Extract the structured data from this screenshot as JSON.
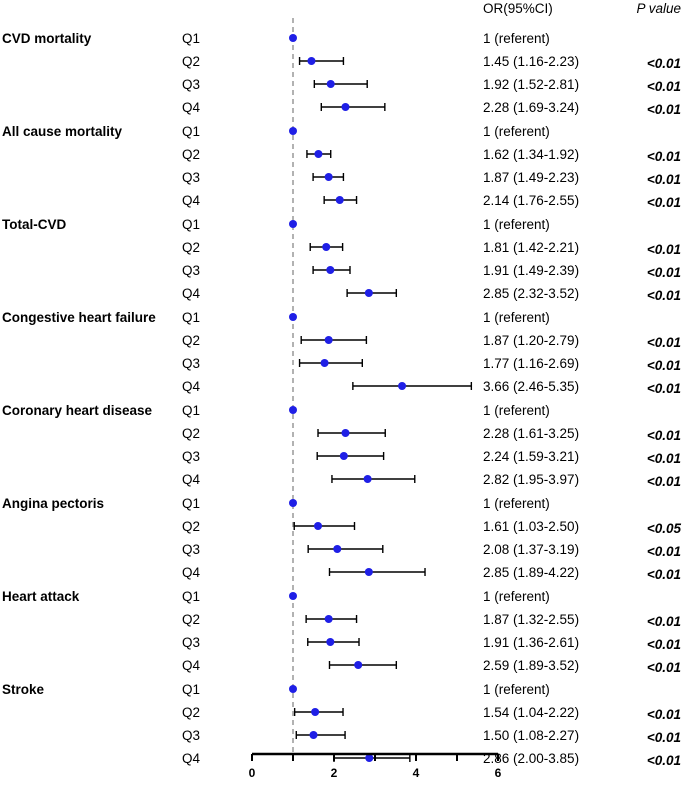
{
  "chart_data": {
    "type": "forest",
    "headers": {
      "or": "OR(95%CI)",
      "p": "P value"
    },
    "reference_value": 1,
    "xlim": [
      0,
      6
    ],
    "xticks": [
      0,
      2,
      4,
      6
    ],
    "colors": {
      "point": "#1f1fe6",
      "ci": "#000000",
      "ref": "#888888",
      "axis": "#000000"
    },
    "groups": [
      {
        "name": "CVD mortality",
        "rows": [
          {
            "q": "Q1",
            "or": 1,
            "lo": null,
            "hi": null,
            "label": "1 (referent)",
            "p": ""
          },
          {
            "q": "Q2",
            "or": 1.45,
            "lo": 1.16,
            "hi": 2.23,
            "label": "1.45 (1.16-2.23)",
            "p": "<0.01"
          },
          {
            "q": "Q3",
            "or": 1.92,
            "lo": 1.52,
            "hi": 2.81,
            "label": "1.92 (1.52-2.81)",
            "p": "<0.01"
          },
          {
            "q": "Q4",
            "or": 2.28,
            "lo": 1.69,
            "hi": 3.24,
            "label": "2.28 (1.69-3.24)",
            "p": "<0.01"
          }
        ]
      },
      {
        "name": "All cause mortality",
        "rows": [
          {
            "q": "Q1",
            "or": 1,
            "lo": null,
            "hi": null,
            "label": "1 (referent)",
            "p": ""
          },
          {
            "q": "Q2",
            "or": 1.62,
            "lo": 1.34,
            "hi": 1.92,
            "label": "1.62 (1.34-1.92)",
            "p": "<0.01"
          },
          {
            "q": "Q3",
            "or": 1.87,
            "lo": 1.49,
            "hi": 2.23,
            "label": "1.87 (1.49-2.23)",
            "p": "<0.01"
          },
          {
            "q": "Q4",
            "or": 2.14,
            "lo": 1.76,
            "hi": 2.55,
            "label": "2.14 (1.76-2.55)",
            "p": "<0.01"
          }
        ]
      },
      {
        "name": "Total-CVD",
        "rows": [
          {
            "q": "Q1",
            "or": 1,
            "lo": null,
            "hi": null,
            "label": "1 (referent)",
            "p": ""
          },
          {
            "q": "Q2",
            "or": 1.81,
            "lo": 1.42,
            "hi": 2.21,
            "label": "1.81 (1.42-2.21)",
            "p": "<0.01"
          },
          {
            "q": "Q3",
            "or": 1.91,
            "lo": 1.49,
            "hi": 2.39,
            "label": "1.91 (1.49-2.39)",
            "p": "<0.01"
          },
          {
            "q": "Q4",
            "or": 2.85,
            "lo": 2.32,
            "hi": 3.52,
            "label": "2.85 (2.32-3.52)",
            "p": "<0.01"
          }
        ]
      },
      {
        "name": "Congestive heart failure",
        "rows": [
          {
            "q": "Q1",
            "or": 1,
            "lo": null,
            "hi": null,
            "label": "1 (referent)",
            "p": ""
          },
          {
            "q": "Q2",
            "or": 1.87,
            "lo": 1.2,
            "hi": 2.79,
            "label": "1.87 (1.20-2.79)",
            "p": "<0.01"
          },
          {
            "q": "Q3",
            "or": 1.77,
            "lo": 1.16,
            "hi": 2.69,
            "label": "1.77 (1.16-2.69)",
            "p": "<0.01"
          },
          {
            "q": "Q4",
            "or": 3.66,
            "lo": 2.46,
            "hi": 5.35,
            "label": "3.66 (2.46-5.35)",
            "p": "<0.01"
          }
        ]
      },
      {
        "name": "Coronary heart disease",
        "rows": [
          {
            "q": "Q1",
            "or": 1,
            "lo": null,
            "hi": null,
            "label": "1 (referent)",
            "p": ""
          },
          {
            "q": "Q2",
            "or": 2.28,
            "lo": 1.61,
            "hi": 3.25,
            "label": "2.28 (1.61-3.25)",
            "p": "<0.01"
          },
          {
            "q": "Q3",
            "or": 2.24,
            "lo": 1.59,
            "hi": 3.21,
            "label": "2.24 (1.59-3.21)",
            "p": "<0.01"
          },
          {
            "q": "Q4",
            "or": 2.82,
            "lo": 1.95,
            "hi": 3.97,
            "label": "2.82 (1.95-3.97)",
            "p": "<0.01"
          }
        ]
      },
      {
        "name": "Angina pectoris",
        "rows": [
          {
            "q": "Q1",
            "or": 1,
            "lo": null,
            "hi": null,
            "label": "1 (referent)",
            "p": ""
          },
          {
            "q": "Q2",
            "or": 1.61,
            "lo": 1.03,
            "hi": 2.5,
            "label": "1.61 (1.03-2.50)",
            "p": "<0.05"
          },
          {
            "q": "Q3",
            "or": 2.08,
            "lo": 1.37,
            "hi": 3.19,
            "label": "2.08 (1.37-3.19)",
            "p": "<0.01"
          },
          {
            "q": "Q4",
            "or": 2.85,
            "lo": 1.89,
            "hi": 4.22,
            "label": "2.85 (1.89-4.22)",
            "p": "<0.01"
          }
        ]
      },
      {
        "name": "Heart attack",
        "rows": [
          {
            "q": "Q1",
            "or": 1,
            "lo": null,
            "hi": null,
            "label": "1 (referent)",
            "p": ""
          },
          {
            "q": "Q2",
            "or": 1.87,
            "lo": 1.32,
            "hi": 2.55,
            "label": "1.87 (1.32-2.55)",
            "p": "<0.01"
          },
          {
            "q": "Q3",
            "or": 1.91,
            "lo": 1.36,
            "hi": 2.61,
            "label": "1.91 (1.36-2.61)",
            "p": "<0.01"
          },
          {
            "q": "Q4",
            "or": 2.59,
            "lo": 1.89,
            "hi": 3.52,
            "label": "2.59 (1.89-3.52)",
            "p": "<0.01"
          }
        ]
      },
      {
        "name": "Stroke",
        "rows": [
          {
            "q": "Q1",
            "or": 1,
            "lo": null,
            "hi": null,
            "label": "1 (referent)",
            "p": ""
          },
          {
            "q": "Q2",
            "or": 1.54,
            "lo": 1.04,
            "hi": 2.22,
            "label": "1.54 (1.04-2.22)",
            "p": "<0.01"
          },
          {
            "q": "Q3",
            "or": 1.5,
            "lo": 1.08,
            "hi": 2.27,
            "label": "1.50 (1.08-2.27)",
            "p": "<0.01"
          },
          {
            "q": "Q4",
            "or": 2.86,
            "lo": 2.0,
            "hi": 3.85,
            "label": "2.86 (2.00-3.85)",
            "p": "<0.01"
          }
        ]
      }
    ]
  }
}
